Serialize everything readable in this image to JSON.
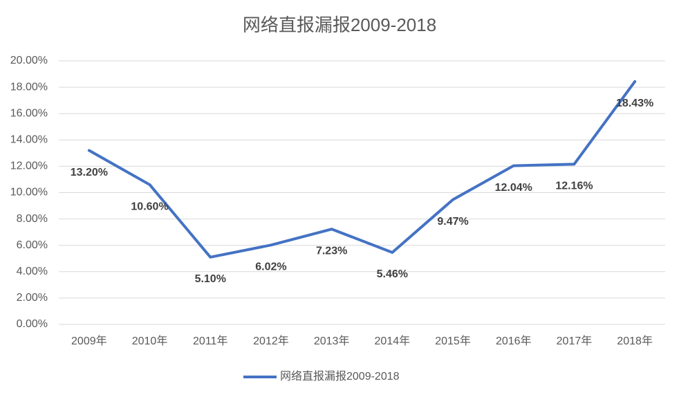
{
  "chart_data": {
    "type": "line",
    "title": "网络直报漏报2009-2018",
    "categories": [
      "2009年",
      "2010年",
      "2011年",
      "2012年",
      "2013年",
      "2014年",
      "2015年",
      "2016年",
      "2017年",
      "2018年"
    ],
    "series": [
      {
        "name": "网络直报漏报2009-2018",
        "color": "#4472c4",
        "values": [
          13.2,
          10.6,
          5.1,
          6.02,
          7.23,
          5.46,
          9.47,
          12.04,
          12.16,
          18.43
        ],
        "value_labels": [
          "13.20%",
          "10.60%",
          "5.10%",
          "6.02%",
          "7.23%",
          "5.46%",
          "9.47%",
          "12.04%",
          "12.16%",
          "18.43%"
        ]
      }
    ],
    "ylim": [
      0,
      20
    ],
    "yticks": [
      {
        "value": 0,
        "label": "0.00%"
      },
      {
        "value": 2,
        "label": "2.00%"
      },
      {
        "value": 4,
        "label": "4.00%"
      },
      {
        "value": 6,
        "label": "6.00%"
      },
      {
        "value": 8,
        "label": "8.00%"
      },
      {
        "value": 10,
        "label": "10.00%"
      },
      {
        "value": 12,
        "label": "12.00%"
      },
      {
        "value": 14,
        "label": "14.00%"
      },
      {
        "value": 16,
        "label": "16.00%"
      },
      {
        "value": 18,
        "label": "18.00%"
      },
      {
        "value": 20,
        "label": "20.00%"
      }
    ],
    "grid": true,
    "legend": "bottom"
  }
}
